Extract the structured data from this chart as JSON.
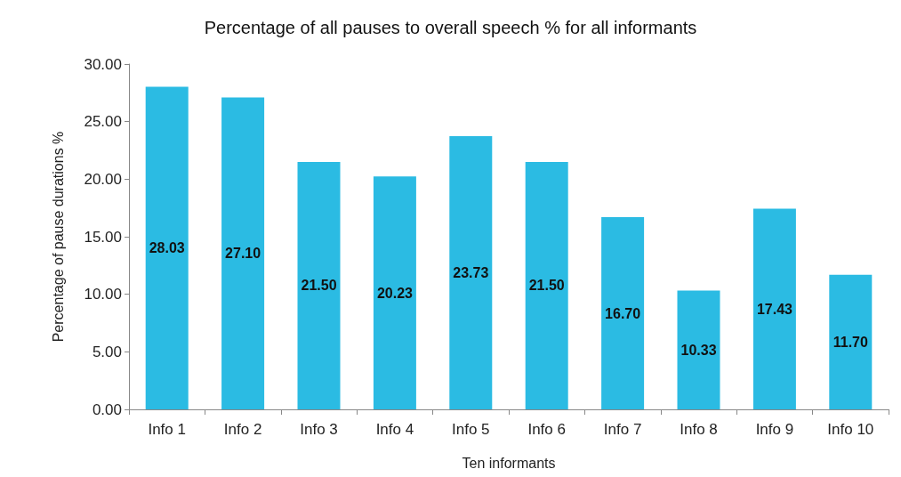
{
  "chart_data": {
    "type": "bar",
    "title": "Percentage of all pauses to overall speech % for all informants",
    "xlabel": "Ten informants",
    "ylabel": "Percentage of pause durations %",
    "categories": [
      "Info 1",
      "Info 2",
      "Info 3",
      "Info 4",
      "Info 5",
      "Info 6",
      "Info 7",
      "Info 8",
      "Info 9",
      "Info 10"
    ],
    "values": [
      28.03,
      27.1,
      21.5,
      20.23,
      23.73,
      21.5,
      16.7,
      10.33,
      17.43,
      11.7
    ],
    "value_labels": [
      "28.03",
      "27.10",
      "21.50",
      "20.23",
      "23.73",
      "21.50",
      "16.70",
      "10.33",
      "17.43",
      "11.70"
    ],
    "color": "#2bbbe3",
    "ylim": [
      0,
      30
    ],
    "yticks": [
      {
        "value": 0,
        "label": "0.00"
      },
      {
        "value": 5,
        "label": "5.00"
      },
      {
        "value": 10,
        "label": "10.00"
      },
      {
        "value": 15,
        "label": "15.00"
      },
      {
        "value": 20,
        "label": "20.00"
      },
      {
        "value": 25,
        "label": "25.00"
      },
      {
        "value": 30,
        "label": "30.00"
      }
    ],
    "grid": false
  }
}
